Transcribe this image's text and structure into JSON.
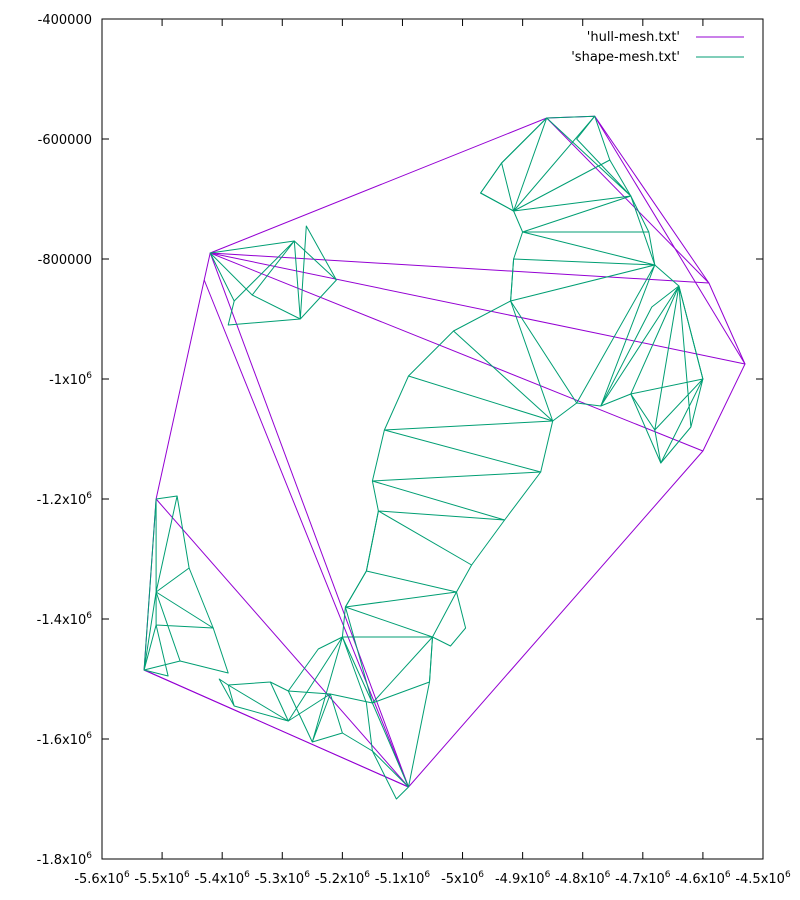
{
  "chart_data": {
    "type": "line",
    "title": "",
    "xlabel": "",
    "ylabel": "",
    "xlim": [
      -5600000,
      -4500000
    ],
    "ylim": [
      -1800000,
      -400000
    ],
    "x_ticks": [
      {
        "value": -5600000,
        "label": "-5.6x10",
        "exp": "6"
      },
      {
        "value": -5500000,
        "label": "-5.5x10",
        "exp": "6"
      },
      {
        "value": -5400000,
        "label": "-5.4x10",
        "exp": "6"
      },
      {
        "value": -5300000,
        "label": "-5.3x10",
        "exp": "6"
      },
      {
        "value": -5200000,
        "label": "-5.2x10",
        "exp": "6"
      },
      {
        "value": -5100000,
        "label": "-5.1x10",
        "exp": "6"
      },
      {
        "value": -5000000,
        "label": "-5x10",
        "exp": "6"
      },
      {
        "value": -4900000,
        "label": "-4.9x10",
        "exp": "6"
      },
      {
        "value": -4800000,
        "label": "-4.8x10",
        "exp": "6"
      },
      {
        "value": -4700000,
        "label": "-4.7x10",
        "exp": "6"
      },
      {
        "value": -4600000,
        "label": "-4.6x10",
        "exp": "6"
      },
      {
        "value": -4500000,
        "label": "-4.5x10",
        "exp": "6"
      }
    ],
    "y_ticks": [
      {
        "value": -400000,
        "label": "-400000",
        "exp": ""
      },
      {
        "value": -600000,
        "label": "-600000",
        "exp": ""
      },
      {
        "value": -800000,
        "label": "-800000",
        "exp": ""
      },
      {
        "value": -1000000,
        "label": "-1x10",
        "exp": "6"
      },
      {
        "value": -1200000,
        "label": "-1.2x10",
        "exp": "6"
      },
      {
        "value": -1400000,
        "label": "-1.4x10",
        "exp": "6"
      },
      {
        "value": -1600000,
        "label": "-1.6x10",
        "exp": "6"
      },
      {
        "value": -1800000,
        "label": "-1.8x10",
        "exp": "6"
      }
    ],
    "legend_position": "top-right",
    "grid": false,
    "series": [
      {
        "name": "'hull-mesh.txt'",
        "color": "#9400d3",
        "segments": [
          [
            [
              -5090000,
              -1680000
            ],
            [
              -5530000,
              -1485000
            ],
            [
              -5510000,
              -1200000
            ],
            [
              -5430000,
              -835000
            ],
            [
              -5420000,
              -790000
            ],
            [
              -4860000,
              -565000
            ],
            [
              -4780000,
              -562000
            ],
            [
              -4590000,
              -840000
            ],
            [
              -4530000,
              -975000
            ],
            [
              -4600000,
              -1120000
            ],
            [
              -5090000,
              -1680000
            ]
          ],
          [
            [
              -5420000,
              -790000
            ],
            [
              -4590000,
              -840000
            ]
          ],
          [
            [
              -5420000,
              -790000
            ],
            [
              -4530000,
              -975000
            ]
          ],
          [
            [
              -5420000,
              -790000
            ],
            [
              -4600000,
              -1120000
            ]
          ],
          [
            [
              -5420000,
              -790000
            ],
            [
              -5090000,
              -1680000
            ]
          ],
          [
            [
              -5430000,
              -835000
            ],
            [
              -5090000,
              -1680000
            ]
          ],
          [
            [
              -5510000,
              -1200000
            ],
            [
              -5090000,
              -1680000
            ]
          ],
          [
            [
              -5530000,
              -1485000
            ],
            [
              -5090000,
              -1680000
            ]
          ],
          [
            [
              -4860000,
              -565000
            ],
            [
              -4590000,
              -840000
            ]
          ],
          [
            [
              -4780000,
              -562000
            ],
            [
              -4530000,
              -975000
            ]
          ]
        ]
      },
      {
        "name": "'shape-mesh.txt'",
        "color": "#009e73",
        "segments": [
          [
            [
              -5090000,
              -1680000
            ],
            [
              -5150000,
              -1620000
            ],
            [
              -5160000,
              -1540000
            ],
            [
              -5200000,
              -1430000
            ],
            [
              -5195000,
              -1380000
            ],
            [
              -5160000,
              -1320000
            ],
            [
              -5140000,
              -1220000
            ],
            [
              -5150000,
              -1170000
            ],
            [
              -5130000,
              -1085000
            ],
            [
              -5090000,
              -995000
            ],
            [
              -5015000,
              -920000
            ],
            [
              -4920000,
              -870000
            ],
            [
              -4915000,
              -800000
            ],
            [
              -4900000,
              -755000
            ],
            [
              -4915000,
              -720000
            ],
            [
              -4970000,
              -690000
            ],
            [
              -4935000,
              -640000
            ],
            [
              -4860000,
              -565000
            ],
            [
              -4780000,
              -562000
            ],
            [
              -4755000,
              -635000
            ],
            [
              -4720000,
              -695000
            ],
            [
              -4690000,
              -755000
            ],
            [
              -4680000,
              -810000
            ],
            [
              -4640000,
              -845000
            ],
            [
              -4600000,
              -1000000
            ],
            [
              -4620000,
              -1080000
            ],
            [
              -4670000,
              -1140000
            ],
            [
              -4680000,
              -1085000
            ],
            [
              -4720000,
              -1025000
            ],
            [
              -4770000,
              -1045000
            ],
            [
              -4810000,
              -1040000
            ],
            [
              -4850000,
              -1070000
            ],
            [
              -4870000,
              -1155000
            ],
            [
              -4930000,
              -1235000
            ],
            [
              -4985000,
              -1310000
            ],
            [
              -5010000,
              -1355000
            ],
            [
              -4995000,
              -1415000
            ],
            [
              -5020000,
              -1445000
            ],
            [
              -5050000,
              -1430000
            ],
            [
              -5055000,
              -1505000
            ],
            [
              -5070000,
              -1580000
            ],
            [
              -5090000,
              -1680000
            ]
          ],
          [
            [
              -5420000,
              -790000
            ],
            [
              -5350000,
              -860000
            ],
            [
              -5270000,
              -900000
            ],
            [
              -5210000,
              -835000
            ],
            [
              -5260000,
              -745000
            ],
            [
              -5270000,
              -900000
            ],
            [
              -5390000,
              -910000
            ],
            [
              -5380000,
              -870000
            ],
            [
              -5420000,
              -790000
            ],
            [
              -5280000,
              -770000
            ],
            [
              -5270000,
              -900000
            ]
          ],
          [
            [
              -5350000,
              -860000
            ],
            [
              -5280000,
              -770000
            ],
            [
              -5380000,
              -870000
            ],
            [
              -5280000,
              -770000
            ],
            [
              -5210000,
              -835000
            ]
          ],
          [
            [
              -5510000,
              -1200000
            ],
            [
              -5475000,
              -1195000
            ],
            [
              -5455000,
              -1315000
            ],
            [
              -5415000,
              -1415000
            ],
            [
              -5390000,
              -1490000
            ],
            [
              -5470000,
              -1470000
            ],
            [
              -5530000,
              -1485000
            ],
            [
              -5510000,
              -1200000
            ]
          ],
          [
            [
              -5510000,
              -1200000
            ],
            [
              -5510000,
              -1355000
            ],
            [
              -5455000,
              -1315000
            ],
            [
              -5510000,
              -1355000
            ],
            [
              -5415000,
              -1415000
            ],
            [
              -5510000,
              -1355000
            ],
            [
              -5470000,
              -1470000
            ],
            [
              -5510000,
              -1355000
            ],
            [
              -5510000,
              -1410000
            ],
            [
              -5530000,
              -1485000
            ],
            [
              -5510000,
              -1410000
            ],
            [
              -5415000,
              -1415000
            ],
            [
              -5510000,
              -1410000
            ],
            [
              -5490000,
              -1495000
            ],
            [
              -5530000,
              -1485000
            ],
            [
              -5510000,
              -1355000
            ],
            [
              -5475000,
              -1195000
            ]
          ],
          [
            [
              -5390000,
              -1510000
            ],
            [
              -5290000,
              -1570000
            ],
            [
              -5220000,
              -1525000
            ],
            [
              -5150000,
              -1540000
            ],
            [
              -5200000,
              -1430000
            ],
            [
              -5290000,
              -1570000
            ]
          ],
          [
            [
              -5390000,
              -1510000
            ],
            [
              -5320000,
              -1505000
            ],
            [
              -5290000,
              -1570000
            ],
            [
              -5320000,
              -1505000
            ],
            [
              -5290000,
              -1520000
            ],
            [
              -5240000,
              -1450000
            ],
            [
              -5200000,
              -1430000
            ],
            [
              -5250000,
              -1605000
            ],
            [
              -5220000,
              -1525000
            ],
            [
              -5250000,
              -1605000
            ],
            [
              -5200000,
              -1590000
            ],
            [
              -5150000,
              -1620000
            ],
            [
              -5200000,
              -1590000
            ],
            [
              -5220000,
              -1525000
            ],
            [
              -5290000,
              -1520000
            ],
            [
              -5250000,
              -1605000
            ]
          ],
          [
            [
              -5390000,
              -1510000
            ],
            [
              -5380000,
              -1545000
            ],
            [
              -5290000,
              -1570000
            ],
            [
              -5380000,
              -1545000
            ],
            [
              -5405000,
              -1500000
            ],
            [
              -5390000,
              -1510000
            ]
          ],
          [
            [
              -5150000,
              -1540000
            ],
            [
              -5090000,
              -1680000
            ],
            [
              -5110000,
              -1700000
            ],
            [
              -5150000,
              -1620000
            ]
          ],
          [
            [
              -5200000,
              -1430000
            ],
            [
              -5050000,
              -1430000
            ],
            [
              -5150000,
              -1540000
            ],
            [
              -5050000,
              -1430000
            ],
            [
              -5055000,
              -1505000
            ],
            [
              -5150000,
              -1540000
            ],
            [
              -5195000,
              -1380000
            ],
            [
              -5050000,
              -1430000
            ],
            [
              -5010000,
              -1355000
            ],
            [
              -5195000,
              -1380000
            ],
            [
              -5160000,
              -1320000
            ],
            [
              -5010000,
              -1355000
            ]
          ],
          [
            [
              -5160000,
              -1320000
            ],
            [
              -5140000,
              -1220000
            ],
            [
              -4985000,
              -1310000
            ],
            [
              -5140000,
              -1220000
            ],
            [
              -4930000,
              -1235000
            ],
            [
              -5150000,
              -1170000
            ],
            [
              -4870000,
              -1155000
            ],
            [
              -5130000,
              -1085000
            ],
            [
              -4850000,
              -1070000
            ],
            [
              -5090000,
              -995000
            ],
            [
              -4850000,
              -1070000
            ],
            [
              -5015000,
              -920000
            ],
            [
              -4850000,
              -1070000
            ],
            [
              -4920000,
              -870000
            ],
            [
              -4810000,
              -1040000
            ],
            [
              -4920000,
              -870000
            ],
            [
              -4680000,
              -810000
            ],
            [
              -4920000,
              -870000
            ],
            [
              -4915000,
              -800000
            ],
            [
              -4680000,
              -810000
            ],
            [
              -4900000,
              -755000
            ],
            [
              -4690000,
              -755000
            ],
            [
              -4900000,
              -755000
            ],
            [
              -4720000,
              -695000
            ],
            [
              -4915000,
              -720000
            ],
            [
              -4755000,
              -635000
            ],
            [
              -4915000,
              -720000
            ],
            [
              -4780000,
              -562000
            ],
            [
              -4915000,
              -720000
            ],
            [
              -4860000,
              -565000
            ],
            [
              -4935000,
              -640000
            ],
            [
              -4915000,
              -720000
            ],
            [
              -4970000,
              -690000
            ],
            [
              -4935000,
              -640000
            ]
          ],
          [
            [
              -4860000,
              -565000
            ],
            [
              -4720000,
              -695000
            ],
            [
              -4810000,
              -600000
            ],
            [
              -4780000,
              -562000
            ]
          ],
          [
            [
              -4720000,
              -695000
            ],
            [
              -4680000,
              -810000
            ]
          ],
          [
            [
              -4810000,
              -1040000
            ],
            [
              -4680000,
              -810000
            ],
            [
              -4770000,
              -1045000
            ],
            [
              -4640000,
              -845000
            ],
            [
              -4720000,
              -1025000
            ],
            [
              -4640000,
              -845000
            ],
            [
              -4600000,
              -1000000
            ],
            [
              -4720000,
              -1025000
            ],
            [
              -4670000,
              -1140000
            ],
            [
              -4600000,
              -1000000
            ],
            [
              -4680000,
              -1085000
            ],
            [
              -4640000,
              -845000
            ],
            [
              -4620000,
              -1080000
            ]
          ],
          [
            [
              -4640000,
              -845000
            ],
            [
              -4685000,
              -880000
            ],
            [
              -4770000,
              -1045000
            ]
          ]
        ]
      }
    ]
  }
}
